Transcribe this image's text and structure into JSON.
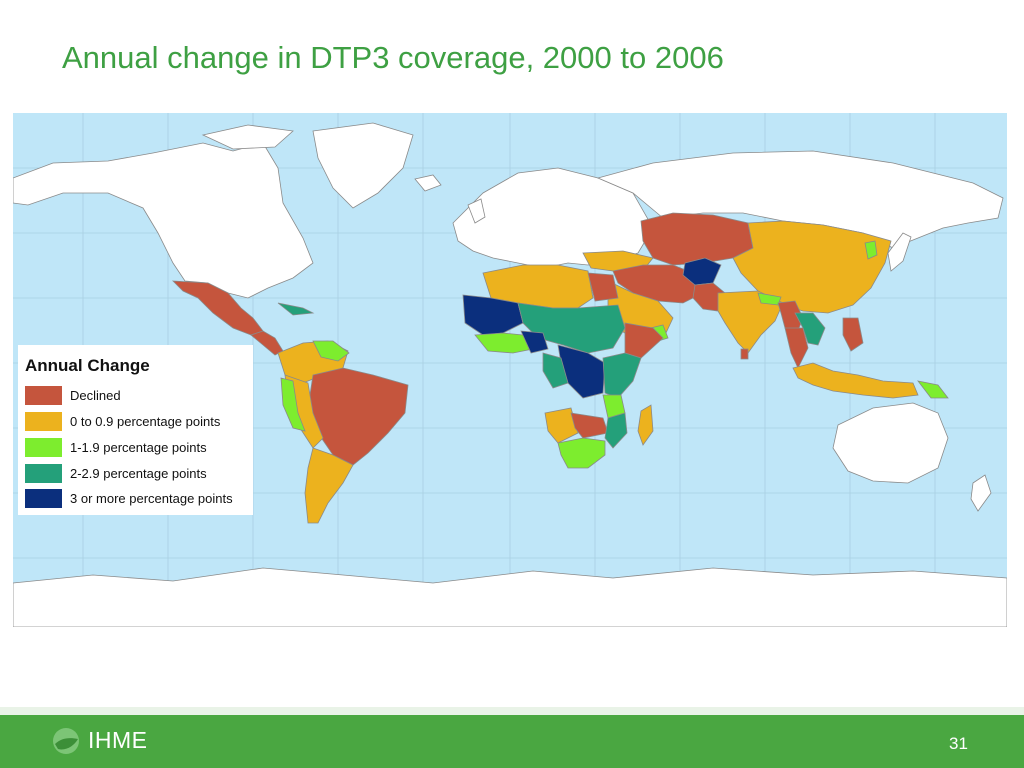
{
  "slide": {
    "title": "Annual change in DTP3 coverage, 2000 to 2006",
    "page_number": "31"
  },
  "footer": {
    "logo_text": "IHME"
  },
  "colors": {
    "ocean": "#bfe6f8",
    "no_data": "#ffffff",
    "declined": "#c5553d",
    "c0_0_9": "#ecb21e",
    "c1_1_9": "#7ded2e",
    "c2_2_9": "#24a07a",
    "c3_plus": "#0b2f7d"
  },
  "legend": {
    "title": "Annual Change",
    "items": [
      {
        "label": "Declined",
        "color": "#c5553d"
      },
      {
        "label": "0 to 0.9 percentage points",
        "color": "#ecb21e"
      },
      {
        "label": "1-1.9 percentage points",
        "color": "#7ded2e"
      },
      {
        "label": "2-2.9 percentage points",
        "color": "#24a07a"
      },
      {
        "label": "3 or more percentage points",
        "color": "#0b2f7d"
      }
    ]
  },
  "chart_data": {
    "type": "choropleth",
    "title": "Annual change in DTP3 coverage, 2000 to 2006",
    "legend_title": "Annual Change",
    "legend_placement": "left",
    "categories": [
      "Declined",
      "0 to 0.9 percentage points",
      "1-1.9 percentage points",
      "2-2.9 percentage points",
      "3 or more percentage points"
    ]
  }
}
